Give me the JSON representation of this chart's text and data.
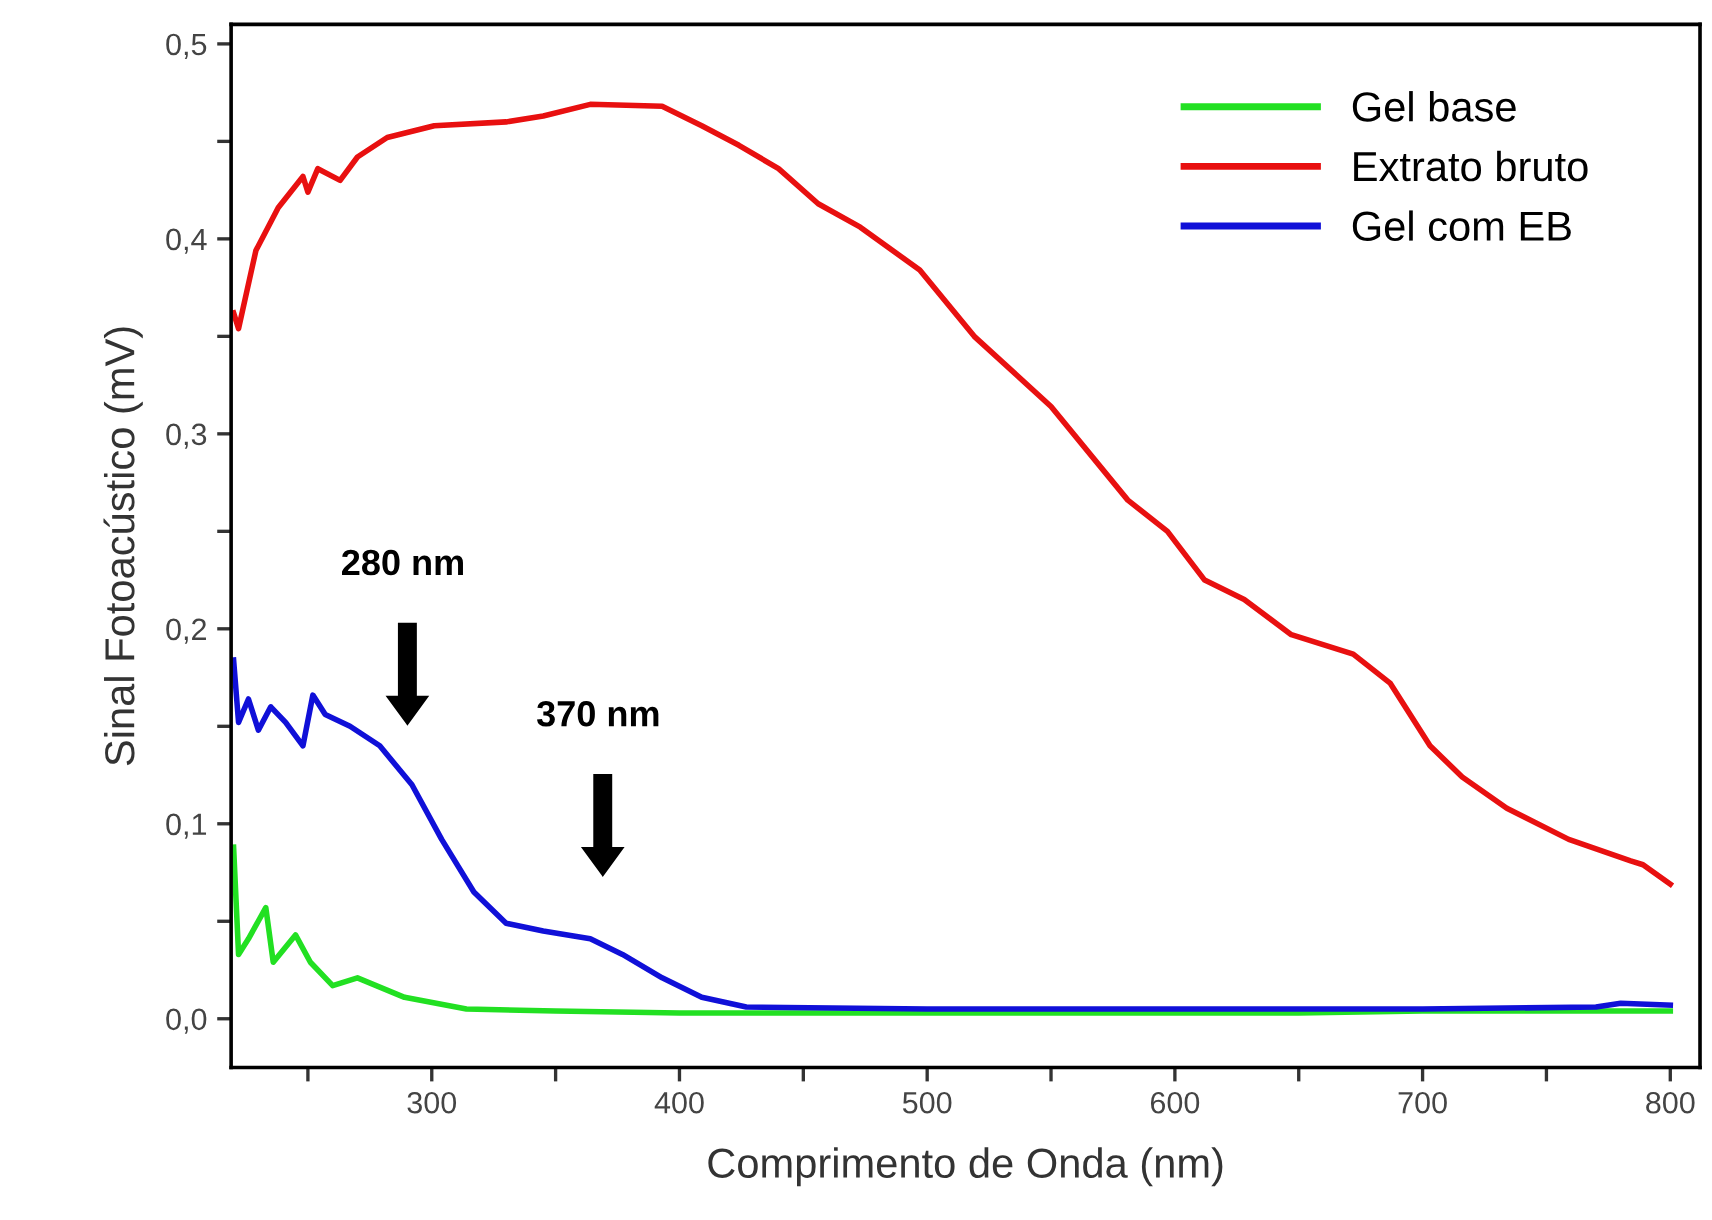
{
  "chart_data": {
    "type": "line",
    "xlabel": "Comprimento de Onda (nm)",
    "ylabel": "Sinal Fotoacústico (mV)",
    "xlim": [
      219,
      812
    ],
    "ylim": [
      -0.025,
      0.51
    ],
    "xticks": [
      {
        "value": 250,
        "label": null
      },
      300,
      {
        "value": 350,
        "label": null
      },
      400,
      {
        "value": 450,
        "label": null
      },
      500,
      {
        "value": 550,
        "label": null
      },
      600,
      {
        "value": 650,
        "label": null
      },
      700,
      {
        "value": 750,
        "label": null
      },
      800
    ],
    "yticks": [
      {
        "value": 0.0,
        "label": "0,0"
      },
      {
        "value": 0.05,
        "label": null
      },
      {
        "value": 0.1,
        "label": "0,1"
      },
      {
        "value": 0.15,
        "label": null
      },
      {
        "value": 0.2,
        "label": "0,2"
      },
      {
        "value": 0.25,
        "label": null
      },
      {
        "value": 0.3,
        "label": "0,3"
      },
      {
        "value": 0.35,
        "label": null
      },
      {
        "value": 0.4,
        "label": "0,4"
      },
      {
        "value": 0.45,
        "label": null
      },
      {
        "value": 0.5,
        "label": "0,5"
      }
    ],
    "grid": false,
    "legend": "top right",
    "line_style": "solid",
    "marker": "none",
    "series": [
      {
        "name": "Gel base",
        "color": "#22e022",
        "x": [
          220,
          222,
          226,
          233,
          236,
          245,
          251,
          260,
          270,
          289,
          314,
          350,
          400,
          450,
          500,
          550,
          600,
          650,
          700,
          750,
          800
        ],
        "values": [
          0.088,
          0.033,
          0.041,
          0.057,
          0.029,
          0.043,
          0.029,
          0.017,
          0.021,
          0.011,
          0.005,
          0.004,
          0.003,
          0.003,
          0.003,
          0.003,
          0.003,
          0.003,
          0.004,
          0.004,
          0.004
        ]
      },
      {
        "name": "Extrato bruto",
        "color": "#e81010",
        "x": [
          220,
          222,
          229,
          238,
          248,
          250,
          254,
          263,
          270,
          282,
          301,
          330,
          345,
          364,
          393,
          409,
          424,
          440,
          456,
          473,
          497,
          519,
          550,
          581,
          597,
          612,
          628,
          647,
          672,
          687,
          703,
          716,
          734,
          759,
          784,
          789,
          800
        ],
        "values": [
          0.362,
          0.354,
          0.394,
          0.416,
          0.432,
          0.424,
          0.436,
          0.43,
          0.442,
          0.452,
          0.458,
          0.46,
          0.463,
          0.469,
          0.468,
          0.458,
          0.448,
          0.436,
          0.418,
          0.406,
          0.384,
          0.35,
          0.314,
          0.266,
          0.25,
          0.225,
          0.215,
          0.197,
          0.187,
          0.172,
          0.14,
          0.124,
          0.108,
          0.092,
          0.081,
          0.079,
          0.069
        ]
      },
      {
        "name": "Gel com EB",
        "color": "#1010d8",
        "x": [
          220,
          222,
          226,
          230,
          235,
          241,
          248,
          252,
          257,
          267,
          279,
          292,
          304,
          317,
          330,
          345,
          364,
          377,
          393,
          409,
          427,
          500,
          600,
          700,
          770,
          780,
          800
        ],
        "values": [
          0.184,
          0.152,
          0.164,
          0.148,
          0.16,
          0.152,
          0.14,
          0.166,
          0.156,
          0.15,
          0.14,
          0.12,
          0.092,
          0.065,
          0.049,
          0.045,
          0.041,
          0.033,
          0.021,
          0.011,
          0.006,
          0.005,
          0.005,
          0.005,
          0.006,
          0.008,
          0.007
        ]
      }
    ],
    "annotations": [
      "280 nm",
      "370 nm"
    ]
  }
}
